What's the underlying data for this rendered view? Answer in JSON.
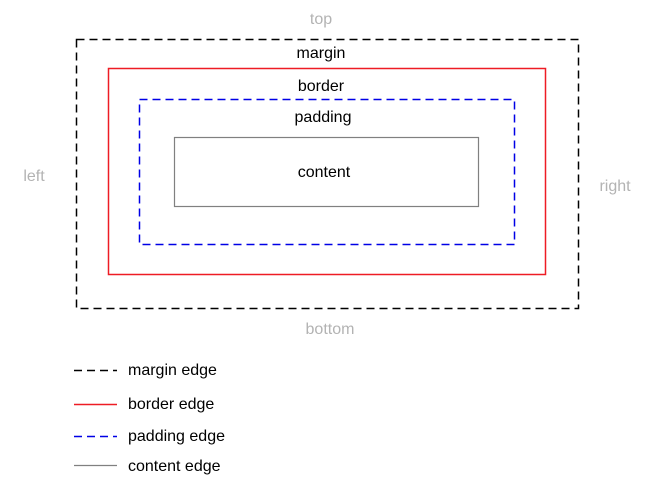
{
  "sides": {
    "top": "top",
    "bottom": "bottom",
    "left": "left",
    "right": "right"
  },
  "boxes": {
    "margin": "margin",
    "border": "border",
    "padding": "padding",
    "content": "content"
  },
  "legend": [
    {
      "label": "margin edge",
      "color": "#000000",
      "style": "dashed"
    },
    {
      "label": "border edge",
      "color": "#ee1c24",
      "style": "solid"
    },
    {
      "label": "padding edge",
      "color": "#0000e6",
      "style": "dashed"
    },
    {
      "label": "content edge",
      "color": "#808080",
      "style": "solid"
    }
  ],
  "colors": {
    "margin_edge": "#000000",
    "border_edge": "#ee1c24",
    "padding_edge": "#0000e6",
    "content_edge": "#808080",
    "side_label": "#b3b3b3"
  }
}
